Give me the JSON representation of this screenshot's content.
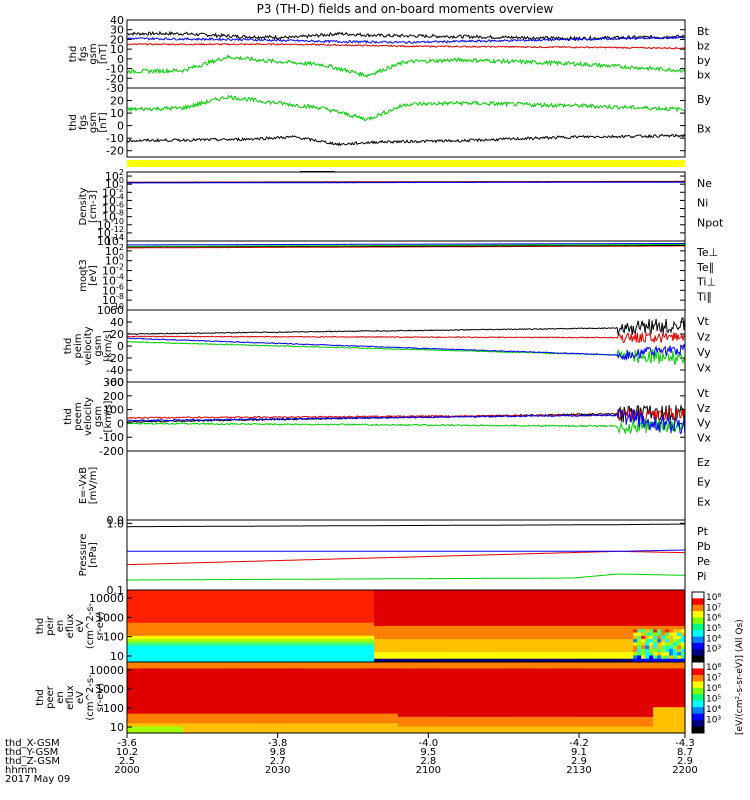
{
  "title": "P3 (TH-D) fields and on-board moments overview",
  "colors": {
    "black": "#000000",
    "red": "#e00000",
    "green": "#00d000",
    "blue": "#0000ff",
    "yellow": "#ffff00"
  },
  "chart_data": [
    {
      "id": "p1",
      "type": "line",
      "ylabel_lines": [
        "thd",
        "fgs",
        "gsm",
        "[nT]"
      ],
      "ylim": [
        -30,
        40
      ],
      "yticks": [
        40,
        30,
        20,
        10,
        0,
        -10,
        -20,
        -30
      ],
      "series": [
        {
          "name": "Bt",
          "color": "black",
          "values": [
            [
              0,
              26
            ],
            [
              0.1,
              26
            ],
            [
              0.2,
              23
            ],
            [
              0.3,
              22
            ],
            [
              0.38,
              26
            ],
            [
              0.45,
              24
            ],
            [
              0.6,
              23
            ],
            [
              0.8,
              21
            ],
            [
              1,
              23
            ]
          ],
          "noise": 1.2
        },
        {
          "name": "bz",
          "color": "red",
          "values": [
            [
              0,
              15
            ],
            [
              0.3,
              15
            ],
            [
              0.5,
              13
            ],
            [
              0.8,
              12
            ],
            [
              1,
              11
            ]
          ],
          "noise": 0.5
        },
        {
          "name": "by",
          "color": "green",
          "values": [
            [
              0,
              -13
            ],
            [
              0.1,
              -12
            ],
            [
              0.18,
              2
            ],
            [
              0.25,
              -2
            ],
            [
              0.35,
              -6
            ],
            [
              0.43,
              -17
            ],
            [
              0.5,
              -3
            ],
            [
              0.6,
              -1
            ],
            [
              0.8,
              -5
            ],
            [
              1,
              -12
            ]
          ],
          "noise": 1.5
        },
        {
          "name": "bx",
          "color": "blue",
          "values": [
            [
              0,
              21
            ],
            [
              0.2,
              20
            ],
            [
              0.35,
              18
            ],
            [
              0.5,
              17
            ],
            [
              0.7,
              19
            ],
            [
              0.9,
              21
            ],
            [
              1,
              22
            ]
          ],
          "noise": 0.8
        }
      ]
    },
    {
      "id": "p2",
      "type": "line",
      "ylabel_lines": [
        "thd",
        "fgs",
        "gsm",
        "[nT]"
      ],
      "ylim": [
        -25,
        30
      ],
      "yticks": [
        20,
        10,
        0,
        -10,
        -20
      ],
      "series": [
        {
          "name": "By",
          "color": "green",
          "values": [
            [
              0,
              13
            ],
            [
              0.1,
              14
            ],
            [
              0.18,
              23
            ],
            [
              0.25,
              19
            ],
            [
              0.35,
              14
            ],
            [
              0.43,
              5
            ],
            [
              0.5,
              17
            ],
            [
              0.6,
              18
            ],
            [
              0.8,
              16
            ],
            [
              1,
              13
            ]
          ],
          "noise": 1.5
        },
        {
          "name": "Bx",
          "color": "black",
          "values": [
            [
              0,
              -12
            ],
            [
              0.2,
              -11
            ],
            [
              0.3,
              -9
            ],
            [
              0.38,
              -15
            ],
            [
              0.45,
              -13
            ],
            [
              0.6,
              -12
            ],
            [
              0.8,
              -9
            ],
            [
              1,
              -8
            ]
          ],
          "noise": 1
        }
      ]
    },
    {
      "id": "p3",
      "type": "line",
      "ylabel_lines": [
        "Density",
        "[cm-3]"
      ],
      "log": true,
      "ylim": [
        -14,
        3
      ],
      "yticks": [
        2,
        0,
        -2,
        -4,
        -6,
        -8,
        -10,
        -12,
        -14
      ],
      "series": [
        {
          "name": "Ne",
          "color": "red",
          "values": [
            [
              0,
              0.5
            ],
            [
              1,
              0.7
            ]
          ],
          "noise": 0.02
        },
        {
          "name": "Ni",
          "color": "black",
          "values": [
            [
              0,
              0.4
            ],
            [
              1,
              0.6
            ]
          ],
          "noise": 0.02
        },
        {
          "name": "Npot",
          "color": "blue",
          "values": [
            [
              0,
              0.3
            ],
            [
              1,
              0.5
            ]
          ],
          "noise": 0.02
        }
      ]
    },
    {
      "id": "p4",
      "type": "line",
      "ylabel_lines": [
        "moqt3",
        "[eV]"
      ],
      "log": true,
      "ylim": [
        -10,
        4
      ],
      "yticks": [
        4,
        2,
        0,
        -2,
        -4,
        -6,
        -8,
        -10
      ],
      "series": [
        {
          "name": "Te⊥",
          "color": "red",
          "values": [
            [
              0,
              2.6
            ],
            [
              1,
              3.0
            ]
          ],
          "noise": 0.02
        },
        {
          "name": "Te∥",
          "color": "black",
          "values": [
            [
              0,
              2.8
            ],
            [
              1,
              3.1
            ]
          ],
          "noise": 0.02
        },
        {
          "name": "Ti⊥",
          "color": "blue",
          "values": [
            [
              0,
              3.2
            ],
            [
              1,
              3.5
            ]
          ],
          "noise": 0.02
        },
        {
          "name": "Ti∥",
          "color": "green",
          "values": [
            [
              0,
              2.9
            ],
            [
              1,
              3.3
            ]
          ],
          "noise": 0.02
        }
      ]
    },
    {
      "id": "p5",
      "type": "line",
      "ylabel_lines": [
        "thd",
        "peim",
        "velocity",
        "gsm",
        "[km/s]"
      ],
      "ylim": [
        -60,
        60
      ],
      "yticks": [
        60,
        40,
        20,
        0,
        -20,
        -40,
        -60
      ],
      "series": [
        {
          "name": "Vt",
          "color": "black",
          "values": [
            [
              0,
              20
            ],
            [
              0.88,
              30
            ],
            [
              1,
              35
            ]
          ],
          "noise": 0.3,
          "burst": {
            "from": 0.88,
            "amp": 14
          }
        },
        {
          "name": "Vz",
          "color": "red",
          "values": [
            [
              0,
              16
            ],
            [
              0.88,
              14
            ],
            [
              1,
              15
            ]
          ],
          "noise": 0.3,
          "burst": {
            "from": 0.88,
            "amp": 10
          }
        },
        {
          "name": "Vy",
          "color": "green",
          "values": [
            [
              0,
              7
            ],
            [
              0.88,
              -15
            ],
            [
              1,
              -20
            ]
          ],
          "noise": 0.3,
          "burst": {
            "from": 0.88,
            "amp": 14
          }
        },
        {
          "name": "Vx",
          "color": "blue",
          "values": [
            [
              0,
              13
            ],
            [
              0.88,
              -15
            ],
            [
              1,
              -5
            ]
          ],
          "noise": 0.3,
          "burst": {
            "from": 0.88,
            "amp": 10
          }
        }
      ]
    },
    {
      "id": "p6",
      "type": "line",
      "ylabel_lines": [
        "thd",
        "peem",
        "velocity",
        "gsm",
        "[km/s]"
      ],
      "ylim": [
        -200,
        300
      ],
      "yticks": [
        300,
        200,
        100,
        0,
        -100,
        -200
      ],
      "series": [
        {
          "name": "Vt",
          "color": "black",
          "values": [
            [
              0,
              10
            ],
            [
              0.88,
              70
            ],
            [
              1,
              70
            ]
          ],
          "noise": 0.5,
          "burst": {
            "from": 0.88,
            "amp": 70
          }
        },
        {
          "name": "Vz",
          "color": "red",
          "values": [
            [
              0,
              40
            ],
            [
              0.88,
              60
            ],
            [
              1,
              55
            ]
          ],
          "noise": 0.5,
          "burst": {
            "from": 0.88,
            "amp": 60
          }
        },
        {
          "name": "Vy",
          "color": "green",
          "values": [
            [
              0,
              0
            ],
            [
              0.88,
              -20
            ],
            [
              1,
              -25
            ]
          ],
          "noise": 0.5,
          "burst": {
            "from": 0.88,
            "amp": 60
          }
        },
        {
          "name": "Vx",
          "color": "blue",
          "values": [
            [
              0,
              20
            ],
            [
              0.88,
              60
            ],
            [
              1,
              -30
            ]
          ],
          "noise": 0.5,
          "burst": {
            "from": 0.88,
            "amp": 70
          }
        }
      ]
    },
    {
      "id": "p7",
      "type": "line",
      "ylabel_lines": [
        "E=-VxB",
        "[mV/m]"
      ],
      "ylim": [
        0,
        1
      ],
      "yticks": [
        0.0
      ],
      "series": [
        {
          "name": "Ez",
          "color": "red",
          "values": []
        },
        {
          "name": "Ey",
          "color": "green",
          "values": []
        },
        {
          "name": "Ex",
          "color": "blue",
          "values": []
        }
      ]
    },
    {
      "id": "p8",
      "type": "line",
      "ylabel_lines": [
        "Pressure",
        "[nPa]"
      ],
      "log": true,
      "ylim": [
        -1,
        0.05
      ],
      "yticks": [
        0,
        -1
      ],
      "ytick_labels": [
        "1.0",
        "0.1"
      ],
      "series": [
        {
          "name": "Pt",
          "color": "black",
          "values": [
            [
              0,
              -0.05
            ],
            [
              0.88,
              -0.02
            ],
            [
              1,
              -0.01
            ]
          ],
          "noise": 0.003
        },
        {
          "name": "Pb",
          "color": "red",
          "values": [
            [
              0,
              -0.62
            ],
            [
              0.88,
              -0.42
            ],
            [
              1,
              -0.44
            ]
          ],
          "noise": 0.003
        },
        {
          "name": "Pe",
          "color": "green",
          "values": [
            [
              0,
              -0.85
            ],
            [
              0.8,
              -0.82
            ],
            [
              0.88,
              -0.76
            ],
            [
              1,
              -0.78
            ]
          ],
          "noise": 0.005
        },
        {
          "name": "Pi",
          "color": "blue",
          "values": [
            [
              0,
              -0.42
            ],
            [
              0.88,
              -0.42
            ],
            [
              1,
              -0.4
            ]
          ],
          "noise": 0.004
        }
      ]
    },
    {
      "id": "p9",
      "type": "heatmap",
      "ylabel_lines": [
        "thd",
        "peir",
        "en",
        "eflux",
        "eV",
        "(cm^2-s-",
        "sr-eV)"
      ],
      "yticks": [
        10000,
        1000,
        100,
        10
      ],
      "ylabels": [
        "10000",
        "1000",
        "100",
        "10"
      ]
    },
    {
      "id": "p10",
      "type": "heatmap",
      "ylabel_lines": [
        "thd",
        "peer",
        "en",
        "eflux",
        "eV",
        "(cm^2-s-",
        "sr-eV)"
      ],
      "yticks": [
        10000,
        1000,
        100,
        10
      ],
      "ylabels": [
        "10000",
        "1000",
        "100",
        "10"
      ]
    }
  ],
  "right_labels": {
    "p1": [
      "Bt",
      "bz",
      "by",
      "bx"
    ],
    "p2": [
      "By",
      "Bx"
    ],
    "p3": [
      "Ne",
      "Ni",
      "Npot"
    ],
    "p4": [
      "Te⊥",
      "Te∥",
      "Ti⊥",
      "Ti∥"
    ],
    "p5": [
      "Vt",
      "Vz",
      "Vy",
      "Vx"
    ],
    "p6": [
      "Vt",
      "Vz",
      "Vy",
      "Vx"
    ],
    "p7": [
      "Ez",
      "Ey",
      "Ex"
    ],
    "p8": [
      "Pt",
      "Pb",
      "Pe",
      "Pi"
    ]
  },
  "colorbar": {
    "label": "[eV/(cm²-s-sr-eV)] (All Qs)",
    "ticks_top": [
      "10⁸",
      "10⁷",
      "10⁶",
      "10⁵",
      "10⁴",
      "10³"
    ],
    "ticks_bottom": [
      "10⁸",
      "10⁷",
      "10⁶",
      "10⁵",
      "10⁴",
      "10³"
    ]
  },
  "xaxis": {
    "rows": [
      {
        "label": "thd_X-GSM",
        "values": [
          "-3.6",
          "-3.8",
          "-4.0",
          "-4.2",
          "-4.3"
        ]
      },
      {
        "label": "thd_Y-GSM",
        "values": [
          "10.2",
          "9.8",
          "9.5",
          "9.1",
          "8.7"
        ]
      },
      {
        "label": "thd_Z-GSM",
        "values": [
          "2.5",
          "2.7",
          "2.8",
          "2.9",
          "2.9"
        ]
      },
      {
        "label": "hhmm",
        "values": [
          "2000",
          "2030",
          "2100",
          "2130",
          "2200"
        ]
      }
    ],
    "date": "2017 May 09"
  }
}
